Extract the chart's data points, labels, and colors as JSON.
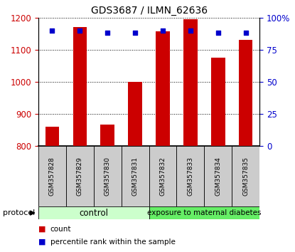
{
  "title": "GDS3687 / ILMN_62636",
  "samples": [
    "GSM357828",
    "GSM357829",
    "GSM357830",
    "GSM357831",
    "GSM357832",
    "GSM357833",
    "GSM357834",
    "GSM357835"
  ],
  "counts": [
    860,
    1170,
    868,
    1000,
    1158,
    1195,
    1075,
    1130
  ],
  "percentile_ranks": [
    90,
    90,
    88,
    88,
    90,
    90,
    88,
    88
  ],
  "ylim_left": [
    800,
    1200
  ],
  "ylim_right": [
    0,
    100
  ],
  "yticks_left": [
    800,
    900,
    1000,
    1100,
    1200
  ],
  "yticks_right": [
    0,
    25,
    50,
    75,
    100
  ],
  "bar_color": "#cc0000",
  "dot_color": "#0000cc",
  "tick_color_left": "#cc0000",
  "tick_color_right": "#0000cc",
  "bg_color": "#ffffff",
  "title_fontsize": 10,
  "group1_label": "control",
  "group2_label": "exposure to maternal diabetes",
  "group1_color": "#ccffcc",
  "group2_color": "#66ee66",
  "sample_box_color": "#cccccc",
  "protocol_label": "protocol",
  "legend_count": "count",
  "legend_percentile": "percentile rank within the sample"
}
